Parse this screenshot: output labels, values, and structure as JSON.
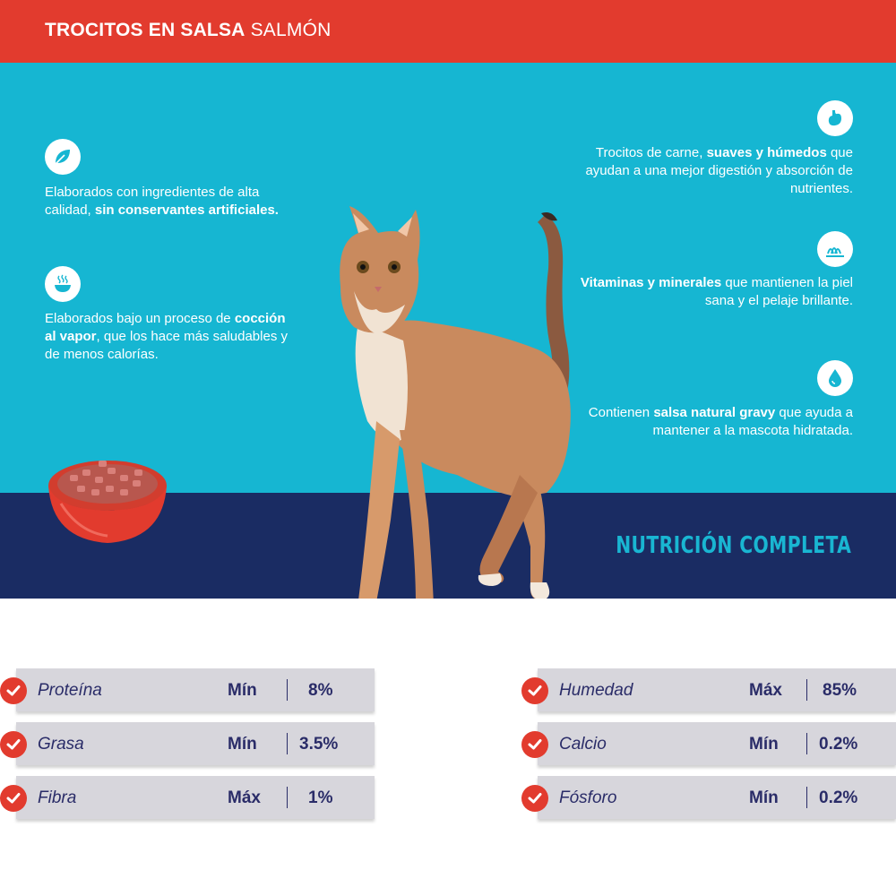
{
  "header": {
    "title_bold": "TROCITOS EN SALSA",
    "title_light": "SALMÓN"
  },
  "features_left": [
    {
      "icon": "leaf-icon",
      "pre": "Elaborados con ingredientes de alta calidad, ",
      "bold": "sin conservantes artificiales.",
      "post": ""
    },
    {
      "icon": "steam-bowl-icon",
      "pre": "Elaborados bajo un proceso de ",
      "bold": "cocción al vapor",
      "post": ", que los hace más saludables y de menos calorías."
    }
  ],
  "features_right": [
    {
      "icon": "stomach-icon",
      "pre": "Trocitos de carne, ",
      "bold": "suaves y húmedos",
      "post": " que ayudan a una mejor digestión y absorción de nutrientes."
    },
    {
      "icon": "fur-icon",
      "pre": "",
      "bold": "Vitaminas y minerales",
      "post": " que mantienen la piel sana y el pelaje brillante."
    },
    {
      "icon": "water-drop-icon",
      "pre": "Contienen ",
      "bold": "salsa natural gravy",
      "post": " que ayuda a mantener a la mascota hidratada."
    }
  ],
  "nutrition_title": "NUTRICIÓN COMPLETA",
  "nutrition_left": [
    {
      "name": "Proteína",
      "limit": "Mín",
      "value": "8%"
    },
    {
      "name": "Grasa",
      "limit": "Mín",
      "value": "3.5%"
    },
    {
      "name": "Fibra",
      "limit": "Máx",
      "value": "1%"
    }
  ],
  "nutrition_right": [
    {
      "name": "Humedad",
      "limit": "Máx",
      "value": "85%"
    },
    {
      "name": "Calcio",
      "limit": "Mín",
      "value": "0.2%"
    },
    {
      "name": "Fósforo",
      "limit": "Mín",
      "value": "0.2%"
    }
  ],
  "colors": {
    "header_red": "#e23b2e",
    "hero_cyan": "#16b6d2",
    "floor_navy": "#1a2c63",
    "table_bar": "#d7d6dc",
    "table_text": "#2a2c68"
  }
}
